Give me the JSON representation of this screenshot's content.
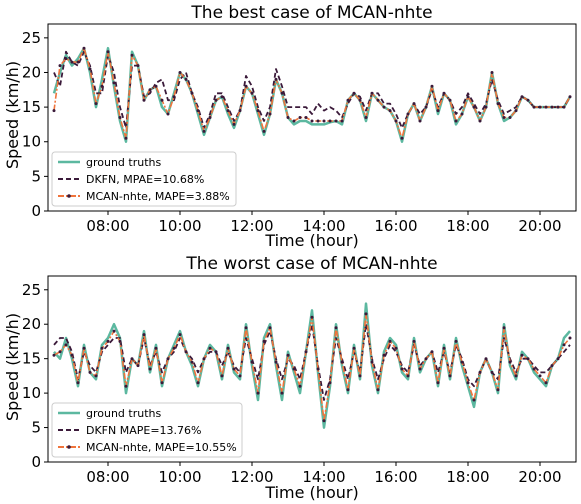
{
  "colors": {
    "truth": "#5cb8a0",
    "dkfn": "#3b1a3a",
    "mcan": "#f0743c",
    "marker": "#3b1a3a"
  },
  "chart_data": [
    {
      "type": "line",
      "title": "The best case of MCAN-nhte",
      "xlabel": "Time (hour)",
      "ylabel": "Speed (km/h)",
      "x_range": [
        "06:20",
        "21:00"
      ],
      "xticks": [
        "08:00",
        "10:00",
        "12:00",
        "14:00",
        "16:00",
        "18:00",
        "20:00"
      ],
      "ylim": [
        0,
        27
      ],
      "yticks": [
        "0",
        "5",
        "10",
        "15",
        "20",
        "25"
      ],
      "grid": false,
      "legend_position": "lower-left",
      "legend": [
        "ground truths",
        "DKFN, MPAE=10.68%",
        "MCAN-nhte, MAPE=3.88%"
      ],
      "x": [
        "06:30",
        "06:40",
        "06:50",
        "07:00",
        "07:10",
        "07:20",
        "07:30",
        "07:40",
        "07:50",
        "08:00",
        "08:10",
        "08:20",
        "08:30",
        "08:40",
        "08:50",
        "09:00",
        "09:10",
        "09:20",
        "09:30",
        "09:40",
        "09:50",
        "10:00",
        "10:10",
        "10:20",
        "10:30",
        "10:40",
        "10:50",
        "11:00",
        "11:10",
        "11:20",
        "11:30",
        "11:40",
        "11:50",
        "12:00",
        "12:10",
        "12:20",
        "12:30",
        "12:40",
        "12:50",
        "13:00",
        "13:10",
        "13:20",
        "13:30",
        "13:40",
        "13:50",
        "14:00",
        "14:10",
        "14:20",
        "14:30",
        "14:40",
        "14:50",
        "15:00",
        "15:10",
        "15:20",
        "15:30",
        "15:40",
        "15:50",
        "16:00",
        "16:10",
        "16:20",
        "16:30",
        "16:40",
        "16:50",
        "17:00",
        "17:10",
        "17:20",
        "17:30",
        "17:40",
        "17:50",
        "18:00",
        "18:10",
        "18:20",
        "18:30",
        "18:40",
        "18:50",
        "19:00",
        "19:10",
        "19:20",
        "19:30",
        "19:40",
        "19:50",
        "20:00",
        "20:10",
        "20:20",
        "20:30",
        "20:40",
        "20:50"
      ],
      "series": [
        {
          "name": "ground truths",
          "values": [
            17,
            20,
            22.5,
            21,
            22,
            23.5,
            20,
            15,
            19,
            23.5,
            18,
            13,
            10,
            23,
            21,
            16,
            17.5,
            18,
            15,
            14,
            17,
            20,
            19,
            17,
            14,
            11,
            13.5,
            16,
            16.5,
            14,
            12,
            14.5,
            18,
            17,
            14,
            11,
            14,
            19,
            17,
            13.5,
            12.5,
            13,
            13,
            12.5,
            12.5,
            12.5,
            12.8,
            13,
            12.5,
            16,
            17,
            16,
            13,
            17,
            16,
            15,
            14.5,
            13,
            10,
            14,
            15.5,
            13,
            15,
            18,
            14,
            17,
            16,
            12.5,
            14,
            16.5,
            15,
            13,
            15,
            20,
            15.5,
            13,
            13.5,
            14.5,
            16.5,
            16,
            15,
            15,
            15,
            15,
            15,
            15,
            16.5
          ]
        },
        {
          "name": "DKFN, MPAE=10.68%",
          "values": [
            20,
            18,
            23,
            21.5,
            21,
            23,
            21,
            17,
            17,
            22.5,
            20,
            15,
            12,
            21,
            21,
            16.5,
            17,
            18.5,
            19,
            16,
            16,
            19,
            20,
            17,
            15,
            12,
            14,
            17,
            17,
            15,
            13,
            14.5,
            19.5,
            18,
            15,
            13,
            15,
            20.5,
            18,
            15,
            15,
            15,
            15,
            14,
            15.5,
            14.5,
            15,
            14.5,
            13.5,
            15.5,
            17,
            16.5,
            14.5,
            17,
            17,
            15.5,
            15.5,
            14,
            12,
            14,
            15.5,
            14,
            15,
            17.5,
            15,
            17,
            16,
            14,
            15,
            17,
            15.5,
            14,
            15.5,
            19,
            16,
            14,
            14.5,
            15,
            16.5,
            16,
            15,
            15,
            15,
            15,
            15,
            15,
            16.5
          ]
        },
        {
          "name": "MCAN-nhte, MAPE=3.88%",
          "values": [
            14.5,
            21,
            22,
            21.5,
            21.5,
            23.5,
            20.5,
            15.5,
            18,
            23,
            18.5,
            13.5,
            10.5,
            22.5,
            21,
            16,
            17.5,
            18,
            16,
            14,
            16.5,
            20,
            19,
            17,
            14.5,
            11.5,
            13.5,
            16,
            16.5,
            14.5,
            12.5,
            14.5,
            18,
            17,
            14.5,
            11.5,
            14,
            19,
            17,
            13.5,
            13,
            13.5,
            13.5,
            13,
            13,
            13,
            13,
            13,
            13,
            16,
            17,
            16,
            13.5,
            17,
            16,
            15,
            14.5,
            13,
            10.5,
            14,
            15.5,
            13,
            15,
            18,
            14.5,
            17,
            16,
            13,
            14,
            16.5,
            15,
            13,
            15,
            20,
            15.5,
            13.5,
            13.5,
            14.5,
            16.5,
            16,
            15,
            15,
            15,
            15,
            15,
            15,
            16.5
          ]
        }
      ]
    },
    {
      "type": "line",
      "title": "The worst case of MCAN-nhte",
      "xlabel": "Time (hour)",
      "ylabel": "Speed (km/h)",
      "x_range": [
        "06:20",
        "21:00"
      ],
      "xticks": [
        "08:00",
        "10:00",
        "12:00",
        "14:00",
        "16:00",
        "18:00",
        "20:00"
      ],
      "ylim": [
        0,
        27
      ],
      "yticks": [
        "0",
        "5",
        "10",
        "15",
        "20",
        "25"
      ],
      "grid": false,
      "legend_position": "lower-left",
      "legend": [
        "ground truths",
        "DKFN MAPE=13.76%",
        "MCAN-nhte, MAPE=10.55%"
      ],
      "x": [
        "06:30",
        "06:40",
        "06:50",
        "07:00",
        "07:10",
        "07:20",
        "07:30",
        "07:40",
        "07:50",
        "08:00",
        "08:10",
        "08:20",
        "08:30",
        "08:40",
        "08:50",
        "09:00",
        "09:10",
        "09:20",
        "09:30",
        "09:40",
        "09:50",
        "10:00",
        "10:10",
        "10:20",
        "10:30",
        "10:40",
        "10:50",
        "11:00",
        "11:10",
        "11:20",
        "11:30",
        "11:40",
        "11:50",
        "12:00",
        "12:10",
        "12:20",
        "12:30",
        "12:40",
        "12:50",
        "13:00",
        "13:10",
        "13:20",
        "13:30",
        "13:40",
        "13:50",
        "14:00",
        "14:10",
        "14:20",
        "14:30",
        "14:40",
        "14:50",
        "15:00",
        "15:10",
        "15:20",
        "15:30",
        "15:40",
        "15:50",
        "16:00",
        "16:10",
        "16:20",
        "16:30",
        "16:40",
        "16:50",
        "17:00",
        "17:10",
        "17:20",
        "17:30",
        "17:40",
        "17:50",
        "18:00",
        "18:10",
        "18:20",
        "18:30",
        "18:40",
        "18:50",
        "19:00",
        "19:10",
        "19:20",
        "19:30",
        "19:40",
        "19:50",
        "20:00",
        "20:10",
        "20:20",
        "20:30",
        "20:40",
        "20:50"
      ],
      "series": [
        {
          "name": "ground truths",
          "values": [
            16,
            15,
            18,
            15,
            11,
            17,
            13,
            12,
            17,
            18,
            20,
            18,
            10,
            15,
            14,
            19,
            13,
            17,
            11,
            15,
            17,
            19,
            16,
            14,
            11,
            15,
            17,
            16,
            12,
            17,
            13,
            12,
            20,
            14,
            9,
            18,
            20,
            14,
            9,
            16,
            13,
            10,
            16,
            22,
            13,
            5,
            11,
            20,
            14,
            10,
            17,
            12,
            23,
            14,
            10,
            16,
            18,
            17,
            13,
            12,
            18,
            13,
            15,
            16,
            11,
            17,
            12,
            18,
            14,
            11,
            8,
            13,
            15,
            13,
            10,
            20,
            14,
            12,
            16,
            15,
            13,
            12,
            11,
            14,
            15,
            18,
            19
          ]
        },
        {
          "name": "DKFN MAPE=13.76%",
          "values": [
            17,
            18,
            18,
            16,
            12,
            16,
            14,
            13,
            16,
            17,
            18,
            18,
            13,
            15,
            14,
            18,
            14,
            16,
            13,
            15,
            16,
            18,
            16,
            15,
            13,
            15,
            16,
            16,
            14,
            16,
            14,
            13,
            18,
            15,
            12,
            17,
            19,
            15,
            12,
            15,
            14,
            12,
            16,
            20,
            14,
            9,
            12,
            18,
            15,
            12,
            16,
            13,
            20,
            15,
            12,
            15,
            17,
            16,
            14,
            13,
            17,
            14,
            15,
            16,
            13,
            16,
            13,
            17,
            15,
            12,
            11,
            13,
            15,
            13,
            12,
            18,
            15,
            13,
            15,
            15,
            14,
            13,
            13,
            14,
            15,
            16,
            17
          ]
        },
        {
          "name": "MCAN-nhte, MAPE=10.55%",
          "values": [
            15.5,
            16,
            17,
            15.5,
            11.5,
            16.5,
            13,
            12.5,
            16.5,
            17.5,
            19,
            17.5,
            11,
            15,
            14,
            18.5,
            13.5,
            16.5,
            11.5,
            15,
            16.5,
            18.5,
            16,
            14.5,
            11.5,
            15,
            16.5,
            16,
            12.5,
            16.5,
            13.5,
            12.5,
            19.5,
            14.5,
            10,
            17.5,
            19.5,
            14.5,
            10,
            15.5,
            13.5,
            11,
            16,
            21,
            13.5,
            6,
            11.5,
            19.5,
            14.5,
            10.5,
            16.5,
            12.5,
            21.5,
            14.5,
            10.5,
            15.5,
            17.5,
            16.5,
            13.5,
            12.5,
            17.5,
            13.5,
            15,
            16,
            11.5,
            16.5,
            12.5,
            17.5,
            14.5,
            11.5,
            9,
            13,
            15,
            13,
            10.5,
            19.5,
            14.5,
            12.5,
            15.5,
            15,
            13.5,
            12.5,
            11.5,
            14,
            15,
            17,
            18
          ]
        }
      ]
    }
  ]
}
